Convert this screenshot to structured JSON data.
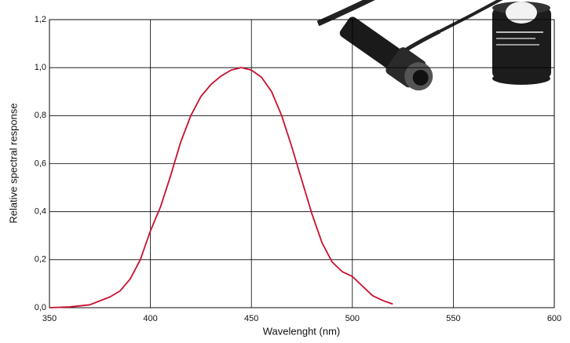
{
  "chart_data": {
    "type": "line",
    "xlabel": "Wavelenght (nm)",
    "ylabel": "Relative spectral response",
    "x": [
      350,
      360,
      370,
      380,
      385,
      390,
      395,
      400,
      405,
      410,
      415,
      420,
      425,
      430,
      435,
      440,
      445,
      450,
      455,
      460,
      465,
      470,
      475,
      480,
      485,
      490,
      495,
      500,
      505,
      510,
      515,
      520
    ],
    "values": [
      0.0,
      0.003,
      0.012,
      0.045,
      0.07,
      0.12,
      0.2,
      0.32,
      0.42,
      0.55,
      0.69,
      0.8,
      0.88,
      0.93,
      0.965,
      0.99,
      1.0,
      0.99,
      0.96,
      0.9,
      0.8,
      0.67,
      0.53,
      0.39,
      0.27,
      0.19,
      0.15,
      0.13,
      0.09,
      0.05,
      0.03,
      0.015
    ],
    "color": "#c8102e",
    "xlim": [
      350,
      600
    ],
    "xticks": [
      350,
      400,
      450,
      500,
      550,
      600
    ],
    "ylim": [
      0,
      1.2
    ],
    "yticks": [
      {
        "value": 0,
        "label": "0,0"
      },
      {
        "value": 0.2,
        "label": "0,2"
      },
      {
        "value": 0.4,
        "label": "0,4"
      },
      {
        "value": 0.6,
        "label": "0,6"
      },
      {
        "value": 0.8,
        "label": "0,8"
      },
      {
        "value": 1.0,
        "label": "1,0"
      },
      {
        "value": 1.2,
        "label": "1,2"
      }
    ],
    "grid": true
  }
}
